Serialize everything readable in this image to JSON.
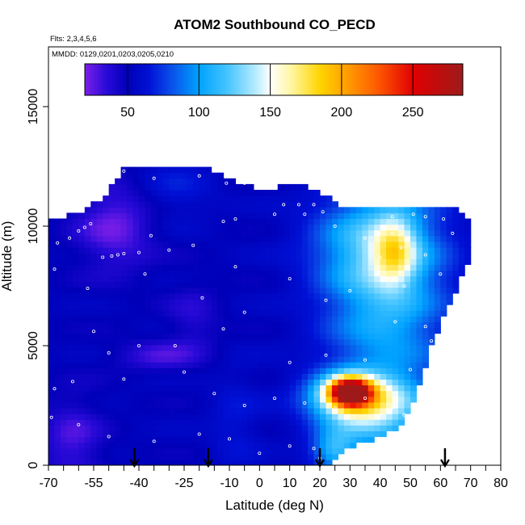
{
  "chart_data": {
    "type": "heatmap",
    "title": "ATOM2 Southbound CO_PECD",
    "flights_note": "Flts: 2,3,4,5,6",
    "dates_note": "MMDD: 0129,0201,0203,0205,0210",
    "xlabel": "Latitude (deg N)",
    "ylabel": "Altitude (m)",
    "xlim": [
      -70,
      80
    ],
    "ylim": [
      0,
      17500
    ],
    "x_ticks": [
      -70,
      -55,
      -40,
      -25,
      -10,
      0,
      10,
      20,
      30,
      40,
      50,
      60,
      70,
      80
    ],
    "x_tick_labels": [
      "-70",
      "-55",
      "-40",
      "-25",
      "-10",
      "0",
      "10",
      "20",
      "30",
      "40",
      "50",
      "60",
      "70",
      "80"
    ],
    "x_minor_ticks": [
      -65,
      -60,
      -50,
      -45,
      -35,
      -30,
      -20,
      -15,
      -5,
      5,
      15,
      25,
      35,
      45,
      55,
      65,
      75
    ],
    "y_ticks": [
      0,
      5000,
      10000,
      15000
    ],
    "y_tick_labels": [
      "0",
      "5000",
      "10000",
      "15000"
    ],
    "colorbar": {
      "range": [
        20,
        285
      ],
      "ticks": [
        50,
        100,
        150,
        200,
        250
      ],
      "tick_labels": [
        "50",
        "100",
        "150",
        "200",
        "250"
      ],
      "stops": [
        {
          "v": 20,
          "c": "#7c1fe8"
        },
        {
          "v": 35,
          "c": "#2a0ad8"
        },
        {
          "v": 50,
          "c": "#0000b8"
        },
        {
          "v": 65,
          "c": "#0011d6"
        },
        {
          "v": 80,
          "c": "#0a4de8"
        },
        {
          "v": 100,
          "c": "#00a2ff"
        },
        {
          "v": 120,
          "c": "#45c4ff"
        },
        {
          "v": 140,
          "c": "#b8ecff"
        },
        {
          "v": 150,
          "c": "#ffffff"
        },
        {
          "v": 165,
          "c": "#fff6a0"
        },
        {
          "v": 185,
          "c": "#ffd400"
        },
        {
          "v": 205,
          "c": "#ff9a00"
        },
        {
          "v": 225,
          "c": "#ff5a00"
        },
        {
          "v": 250,
          "c": "#e00000"
        },
        {
          "v": 285,
          "c": "#9e1a1a"
        }
      ]
    },
    "arrow_latitudes": [
      -41.5,
      -17,
      20,
      61.5
    ],
    "extent_columns": [
      {
        "lat": -69,
        "top": 10200
      },
      {
        "lat": -60,
        "top": 10600
      },
      {
        "lat": -52,
        "top": 11200
      },
      {
        "lat": -45,
        "top": 12400
      },
      {
        "lat": -30,
        "top": 12400
      },
      {
        "lat": -16,
        "top": 12400
      },
      {
        "lat": -8,
        "top": 11900
      },
      {
        "lat": 0,
        "top": 11600
      },
      {
        "lat": 16,
        "top": 11700
      },
      {
        "lat": 27,
        "top": 10900
      },
      {
        "lat": 40,
        "top": 10800
      },
      {
        "lat": 60,
        "top": 10800
      },
      {
        "lat": 66,
        "top": 10700
      },
      {
        "lat": 70,
        "top": 10200
      }
    ],
    "extent_right_edge": [
      {
        "alt": 10300,
        "lat": 70.5
      },
      {
        "alt": 8800,
        "lat": 70
      },
      {
        "alt": 7000,
        "lat": 64
      },
      {
        "alt": 5000,
        "lat": 57
      },
      {
        "alt": 3000,
        "lat": 52
      },
      {
        "alt": 1500,
        "lat": 46
      },
      {
        "alt": 700,
        "lat": 29
      },
      {
        "alt": 0,
        "lat": 22
      }
    ],
    "background_level": 52,
    "features": [
      {
        "name": "southern upper purple",
        "lat": -48,
        "alt": 10000,
        "slat": 9,
        "salt": 1300,
        "v": -28
      },
      {
        "name": "southern near-surface purple",
        "lat": -62,
        "alt": 1000,
        "slat": 7,
        "salt": 1300,
        "v": -22
      },
      {
        "name": "mid-troposphere purple streak",
        "lat": -33,
        "alt": 4600,
        "slat": 10,
        "salt": 450,
        "v": -20
      },
      {
        "name": "tropical mid-level purple",
        "lat": -22,
        "alt": 6200,
        "slat": 6,
        "salt": 1000,
        "v": -14
      },
      {
        "name": "southern upper blue patch",
        "lat": -28,
        "alt": 11500,
        "slat": 9,
        "salt": 900,
        "v": 14
      },
      {
        "name": "lower tropical blue",
        "lat": -8,
        "alt": 1800,
        "slat": 6,
        "salt": 1600,
        "v": 12
      },
      {
        "name": "northern light-blue body",
        "lat": 42,
        "alt": 6500,
        "slat": 14,
        "salt": 3200,
        "v": 53
      },
      {
        "name": "northern upper body",
        "lat": 38,
        "alt": 9300,
        "slat": 14,
        "salt": 1500,
        "v": 45
      },
      {
        "name": "upper white patch",
        "lat": 45,
        "alt": 9000,
        "slat": 5,
        "salt": 1000,
        "v": 60
      },
      {
        "name": "lower northern band",
        "lat": 38,
        "alt": 2000,
        "slat": 12,
        "salt": 1000,
        "v": 52
      },
      {
        "name": "white band near 3 km",
        "lat": 34,
        "alt": 2900,
        "slat": 12,
        "salt": 600,
        "v": 50
      },
      {
        "name": "polluted plume core",
        "lat": 30,
        "alt": 3100,
        "slat": 4.5,
        "salt": 380,
        "v": 175
      },
      {
        "name": "polluted plume halo",
        "lat": 29,
        "alt": 2900,
        "slat": 8,
        "salt": 700,
        "v": 55
      },
      {
        "name": "surface northern blue",
        "lat": 25,
        "alt": 600,
        "slat": 5,
        "salt": 600,
        "v": 50
      }
    ],
    "sample_points": [
      [
        -45,
        12300
      ],
      [
        -35,
        12000
      ],
      [
        -20,
        12100
      ],
      [
        -11,
        11800
      ],
      [
        -5,
        11800
      ],
      [
        8,
        10900
      ],
      [
        13,
        10900
      ],
      [
        18,
        10900
      ],
      [
        21,
        10600
      ],
      [
        44,
        10400
      ],
      [
        51,
        10500
      ],
      [
        55,
        10400
      ],
      [
        61,
        10300
      ],
      [
        -67,
        9300
      ],
      [
        -63,
        9500
      ],
      [
        -60,
        9800
      ],
      [
        -58,
        9950
      ],
      [
        -56,
        10100
      ],
      [
        -52,
        8700
      ],
      [
        -49,
        8750
      ],
      [
        -47,
        8800
      ],
      [
        -45,
        8850
      ],
      [
        -40,
        8900
      ],
      [
        -36,
        9600
      ],
      [
        -30,
        9000
      ],
      [
        -22,
        9200
      ],
      [
        -12,
        10200
      ],
      [
        -8,
        10300
      ],
      [
        5,
        10500
      ],
      [
        15,
        10500
      ],
      [
        25,
        10000
      ],
      [
        35,
        9500
      ],
      [
        40,
        8700
      ],
      [
        44,
        9700
      ],
      [
        47,
        9100
      ],
      [
        55,
        8800
      ],
      [
        60,
        8000
      ],
      [
        64,
        9700
      ],
      [
        -68,
        8200
      ],
      [
        -57,
        7400
      ],
      [
        -38,
        8000
      ],
      [
        -19,
        7000
      ],
      [
        -8,
        8300
      ],
      [
        10,
        7800
      ],
      [
        22,
        6900
      ],
      [
        30,
        7300
      ],
      [
        45,
        6000
      ],
      [
        48,
        7500
      ],
      [
        55,
        5800
      ],
      [
        -55,
        5600
      ],
      [
        -50,
        4700
      ],
      [
        -40,
        5000
      ],
      [
        -28,
        5000
      ],
      [
        -12,
        5700
      ],
      [
        -5,
        6400
      ],
      [
        10,
        4300
      ],
      [
        22,
        4600
      ],
      [
        35,
        4400
      ],
      [
        50,
        4000
      ],
      [
        57,
        5200
      ],
      [
        -68,
        3200
      ],
      [
        -62,
        3500
      ],
      [
        -45,
        3600
      ],
      [
        -25,
        3900
      ],
      [
        -15,
        3000
      ],
      [
        -5,
        2500
      ],
      [
        5,
        2800
      ],
      [
        15,
        2600
      ],
      [
        25,
        2400
      ],
      [
        35,
        2800
      ],
      [
        40,
        2100
      ],
      [
        44,
        2400
      ],
      [
        48,
        2100
      ],
      [
        -69,
        2000
      ],
      [
        -60,
        1700
      ],
      [
        -50,
        1200
      ],
      [
        -35,
        1000
      ],
      [
        -20,
        1300
      ],
      [
        -10,
        1100
      ],
      [
        0,
        500
      ],
      [
        10,
        800
      ],
      [
        18,
        700
      ],
      [
        20,
        300
      ]
    ]
  }
}
